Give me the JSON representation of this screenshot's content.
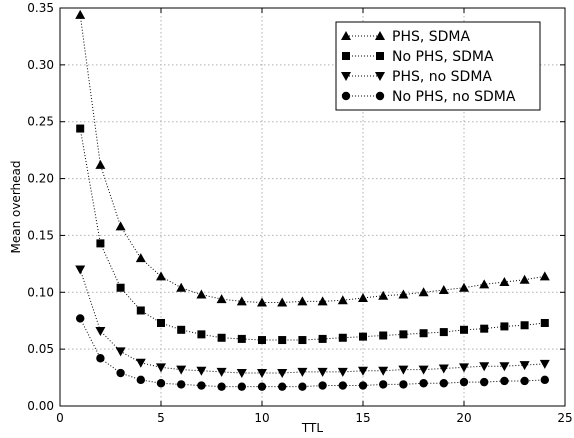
{
  "chart_data": {
    "type": "line",
    "title": "",
    "xlabel": "TTL",
    "ylabel": "Mean overhead",
    "xlim": [
      0,
      25
    ],
    "ylim": [
      0,
      0.35
    ],
    "xticks": [
      "0",
      "5",
      "10",
      "15",
      "20",
      "25"
    ],
    "yticks": [
      "0.00",
      "0.05",
      "0.10",
      "0.15",
      "0.20",
      "0.25",
      "0.30",
      "0.35"
    ],
    "grid": true,
    "legend_position": "top-right",
    "x": [
      1,
      2,
      3,
      4,
      5,
      6,
      7,
      8,
      9,
      10,
      11,
      12,
      13,
      14,
      15,
      16,
      17,
      18,
      19,
      20,
      21,
      22,
      23,
      24
    ],
    "series": [
      {
        "name": "PHS, SDMA",
        "marker": "triangle-up",
        "values": [
          0.344,
          0.212,
          0.158,
          0.13,
          0.114,
          0.104,
          0.098,
          0.094,
          0.092,
          0.091,
          0.091,
          0.092,
          0.092,
          0.093,
          0.095,
          0.097,
          0.098,
          0.1,
          0.102,
          0.104,
          0.107,
          0.109,
          0.111,
          0.114
        ]
      },
      {
        "name": "No PHS, SDMA",
        "marker": "square",
        "values": [
          0.244,
          0.143,
          0.104,
          0.084,
          0.073,
          0.067,
          0.063,
          0.06,
          0.059,
          0.058,
          0.058,
          0.058,
          0.059,
          0.06,
          0.061,
          0.062,
          0.063,
          0.064,
          0.065,
          0.067,
          0.068,
          0.07,
          0.071,
          0.073
        ]
      },
      {
        "name": "PHS, no SDMA",
        "marker": "triangle-down",
        "values": [
          0.12,
          0.066,
          0.048,
          0.038,
          0.034,
          0.032,
          0.031,
          0.03,
          0.029,
          0.029,
          0.029,
          0.03,
          0.03,
          0.03,
          0.031,
          0.031,
          0.032,
          0.032,
          0.033,
          0.034,
          0.035,
          0.035,
          0.036,
          0.037
        ]
      },
      {
        "name": "No PHS, no SDMA",
        "marker": "circle",
        "values": [
          0.077,
          0.042,
          0.029,
          0.023,
          0.02,
          0.019,
          0.018,
          0.017,
          0.017,
          0.017,
          0.017,
          0.017,
          0.018,
          0.018,
          0.018,
          0.019,
          0.019,
          0.02,
          0.02,
          0.021,
          0.021,
          0.022,
          0.022,
          0.023
        ]
      }
    ]
  }
}
